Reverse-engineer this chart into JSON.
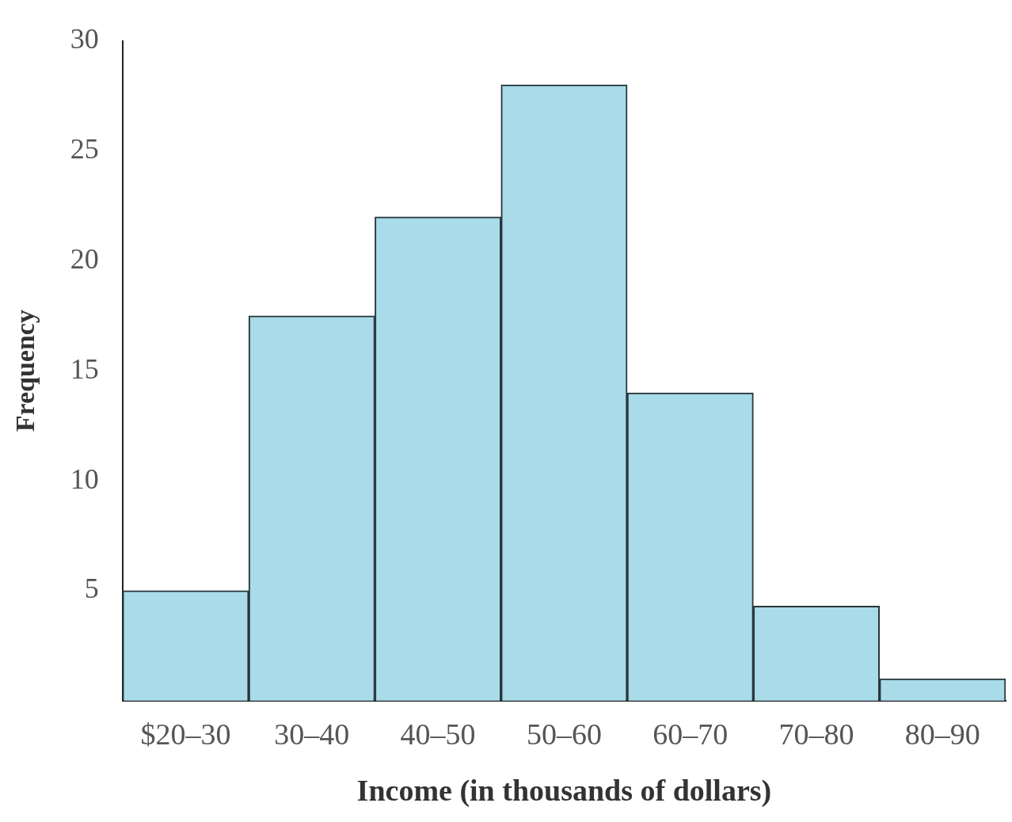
{
  "chart_data": {
    "type": "bar",
    "xlabel": "Income (in thousands of dollars)",
    "ylabel": "Frequency",
    "categories": [
      "$20–30",
      "30–40",
      "40–50",
      "50–60",
      "60–70",
      "70–80",
      "80–90"
    ],
    "values": [
      5,
      17.5,
      22,
      28,
      14,
      4.3,
      1
    ],
    "color": "#a9dbe9",
    "ylim": [
      0,
      30
    ],
    "yticks": [
      5,
      10,
      15,
      20,
      25,
      30
    ],
    "grid": false,
    "legend": false
  }
}
